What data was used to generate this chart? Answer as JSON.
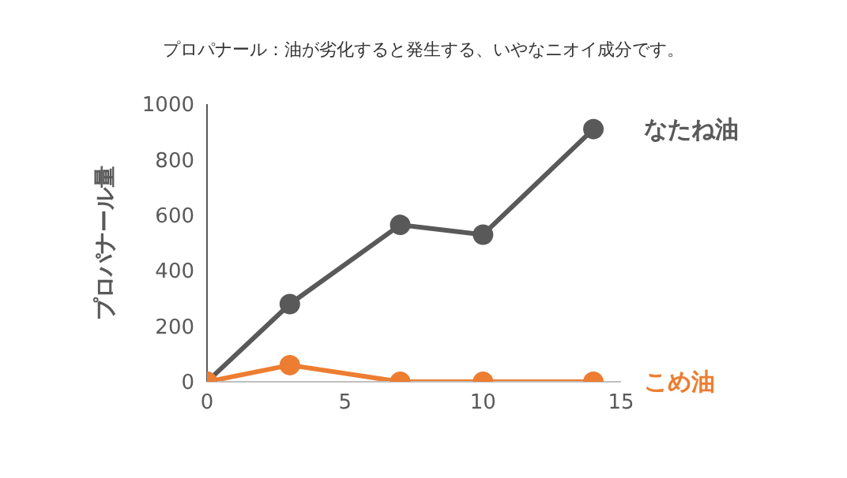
{
  "chart_data": {
    "type": "line",
    "title": "プロパナール：油が劣化すると発生する、いやなニオイ成分です。",
    "ylabel": "プロパナール量",
    "x": [
      0,
      3,
      7,
      10,
      14
    ],
    "series": [
      {
        "name": "なたね油",
        "color": "#595959",
        "values": [
          0,
          280,
          565,
          530,
          910
        ]
      },
      {
        "name": "こめ油",
        "color": "#ed7d31",
        "values": [
          0,
          60,
          0,
          0,
          0
        ]
      }
    ],
    "xlim": [
      0,
      15
    ],
    "xticks": [
      0,
      5,
      10,
      15
    ],
    "ylim": [
      0,
      1000
    ],
    "yticks": [
      0,
      200,
      400,
      600,
      800,
      1000
    ],
    "grid": false,
    "legend": false,
    "marker": "circle",
    "line_style": "solid"
  }
}
